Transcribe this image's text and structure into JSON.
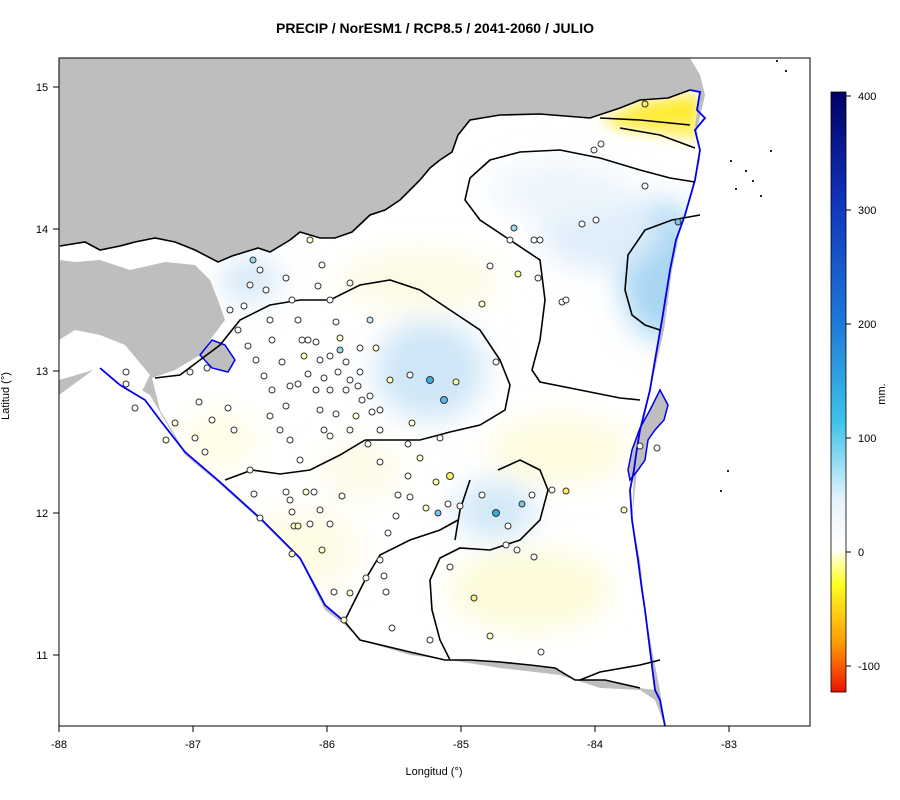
{
  "title": "PRECIP / NorESM1 / RCP8.5 / 2041-2060 / JULIO",
  "x_axis": {
    "label": "Longitud (°)",
    "ticks": [
      "-88",
      "-87",
      "-86",
      "-85",
      "-84",
      "-83"
    ]
  },
  "y_axis": {
    "label": "Latitud (°)",
    "ticks": [
      "11",
      "12",
      "13",
      "14",
      "15"
    ]
  },
  "colorbar": {
    "unit": "mm.",
    "ticks": [
      "-100",
      "0",
      "100",
      "200",
      "300",
      "400"
    ],
    "range": [
      -120,
      400
    ],
    "colors": {
      "low": "#ee1100",
      "mid_neg": "#ffff00",
      "zero": "#ffffff",
      "mid_pos": "#00aadd",
      "high": "#000066"
    }
  },
  "colors": {
    "land_outside": "#bebebe",
    "coastline": "#0000ee",
    "border": "#000000",
    "contour": "#000000",
    "station_outline": "#333333"
  },
  "map_data": {
    "extent": {
      "lon": [
        -88,
        -82.4
      ],
      "lat": [
        10.5,
        15.2
      ]
    },
    "description_free": true
  }
}
